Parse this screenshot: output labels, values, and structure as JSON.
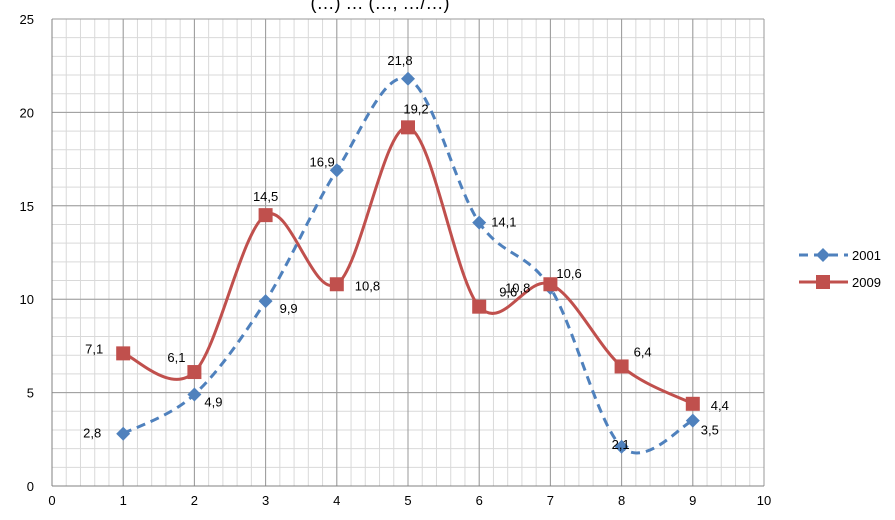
{
  "chart_data": {
    "type": "line",
    "title": "(…) … (…, …/…)",
    "xlabel": "",
    "ylabel": "",
    "xlim": [
      0,
      10
    ],
    "ylim": [
      0,
      25
    ],
    "x_ticks": [
      0,
      1,
      2,
      3,
      4,
      5,
      6,
      7,
      8,
      9,
      10
    ],
    "y_ticks": [
      0,
      5,
      10,
      15,
      20,
      25
    ],
    "grid": true,
    "legend_position": "right",
    "series": [
      {
        "name": "2001",
        "color": "#4f81bd",
        "line_style": "dashed",
        "marker": "diamond",
        "x": [
          1,
          2,
          3,
          4,
          5,
          6,
          7,
          8,
          9
        ],
        "values": [
          2.8,
          4.9,
          9.9,
          16.9,
          21.8,
          14.1,
          10.6,
          2.1,
          3.5
        ],
        "labels": [
          "2,8",
          "4,9",
          "9,9",
          "16,9",
          "21,8",
          "14,1",
          "10,6",
          "2,1",
          "3,5"
        ]
      },
      {
        "name": "2009",
        "color": "#c0504d",
        "line_style": "solid",
        "marker": "square",
        "x": [
          1,
          2,
          3,
          4,
          5,
          6,
          7,
          8,
          9
        ],
        "values": [
          7.1,
          6.1,
          14.5,
          10.8,
          19.2,
          9.6,
          10.8,
          6.4,
          4.4
        ],
        "labels": [
          "7,1",
          "6,1",
          "14,5",
          "10,8",
          "19,2",
          "9,6",
          "10,8",
          "6,4",
          "4,4"
        ]
      }
    ]
  }
}
